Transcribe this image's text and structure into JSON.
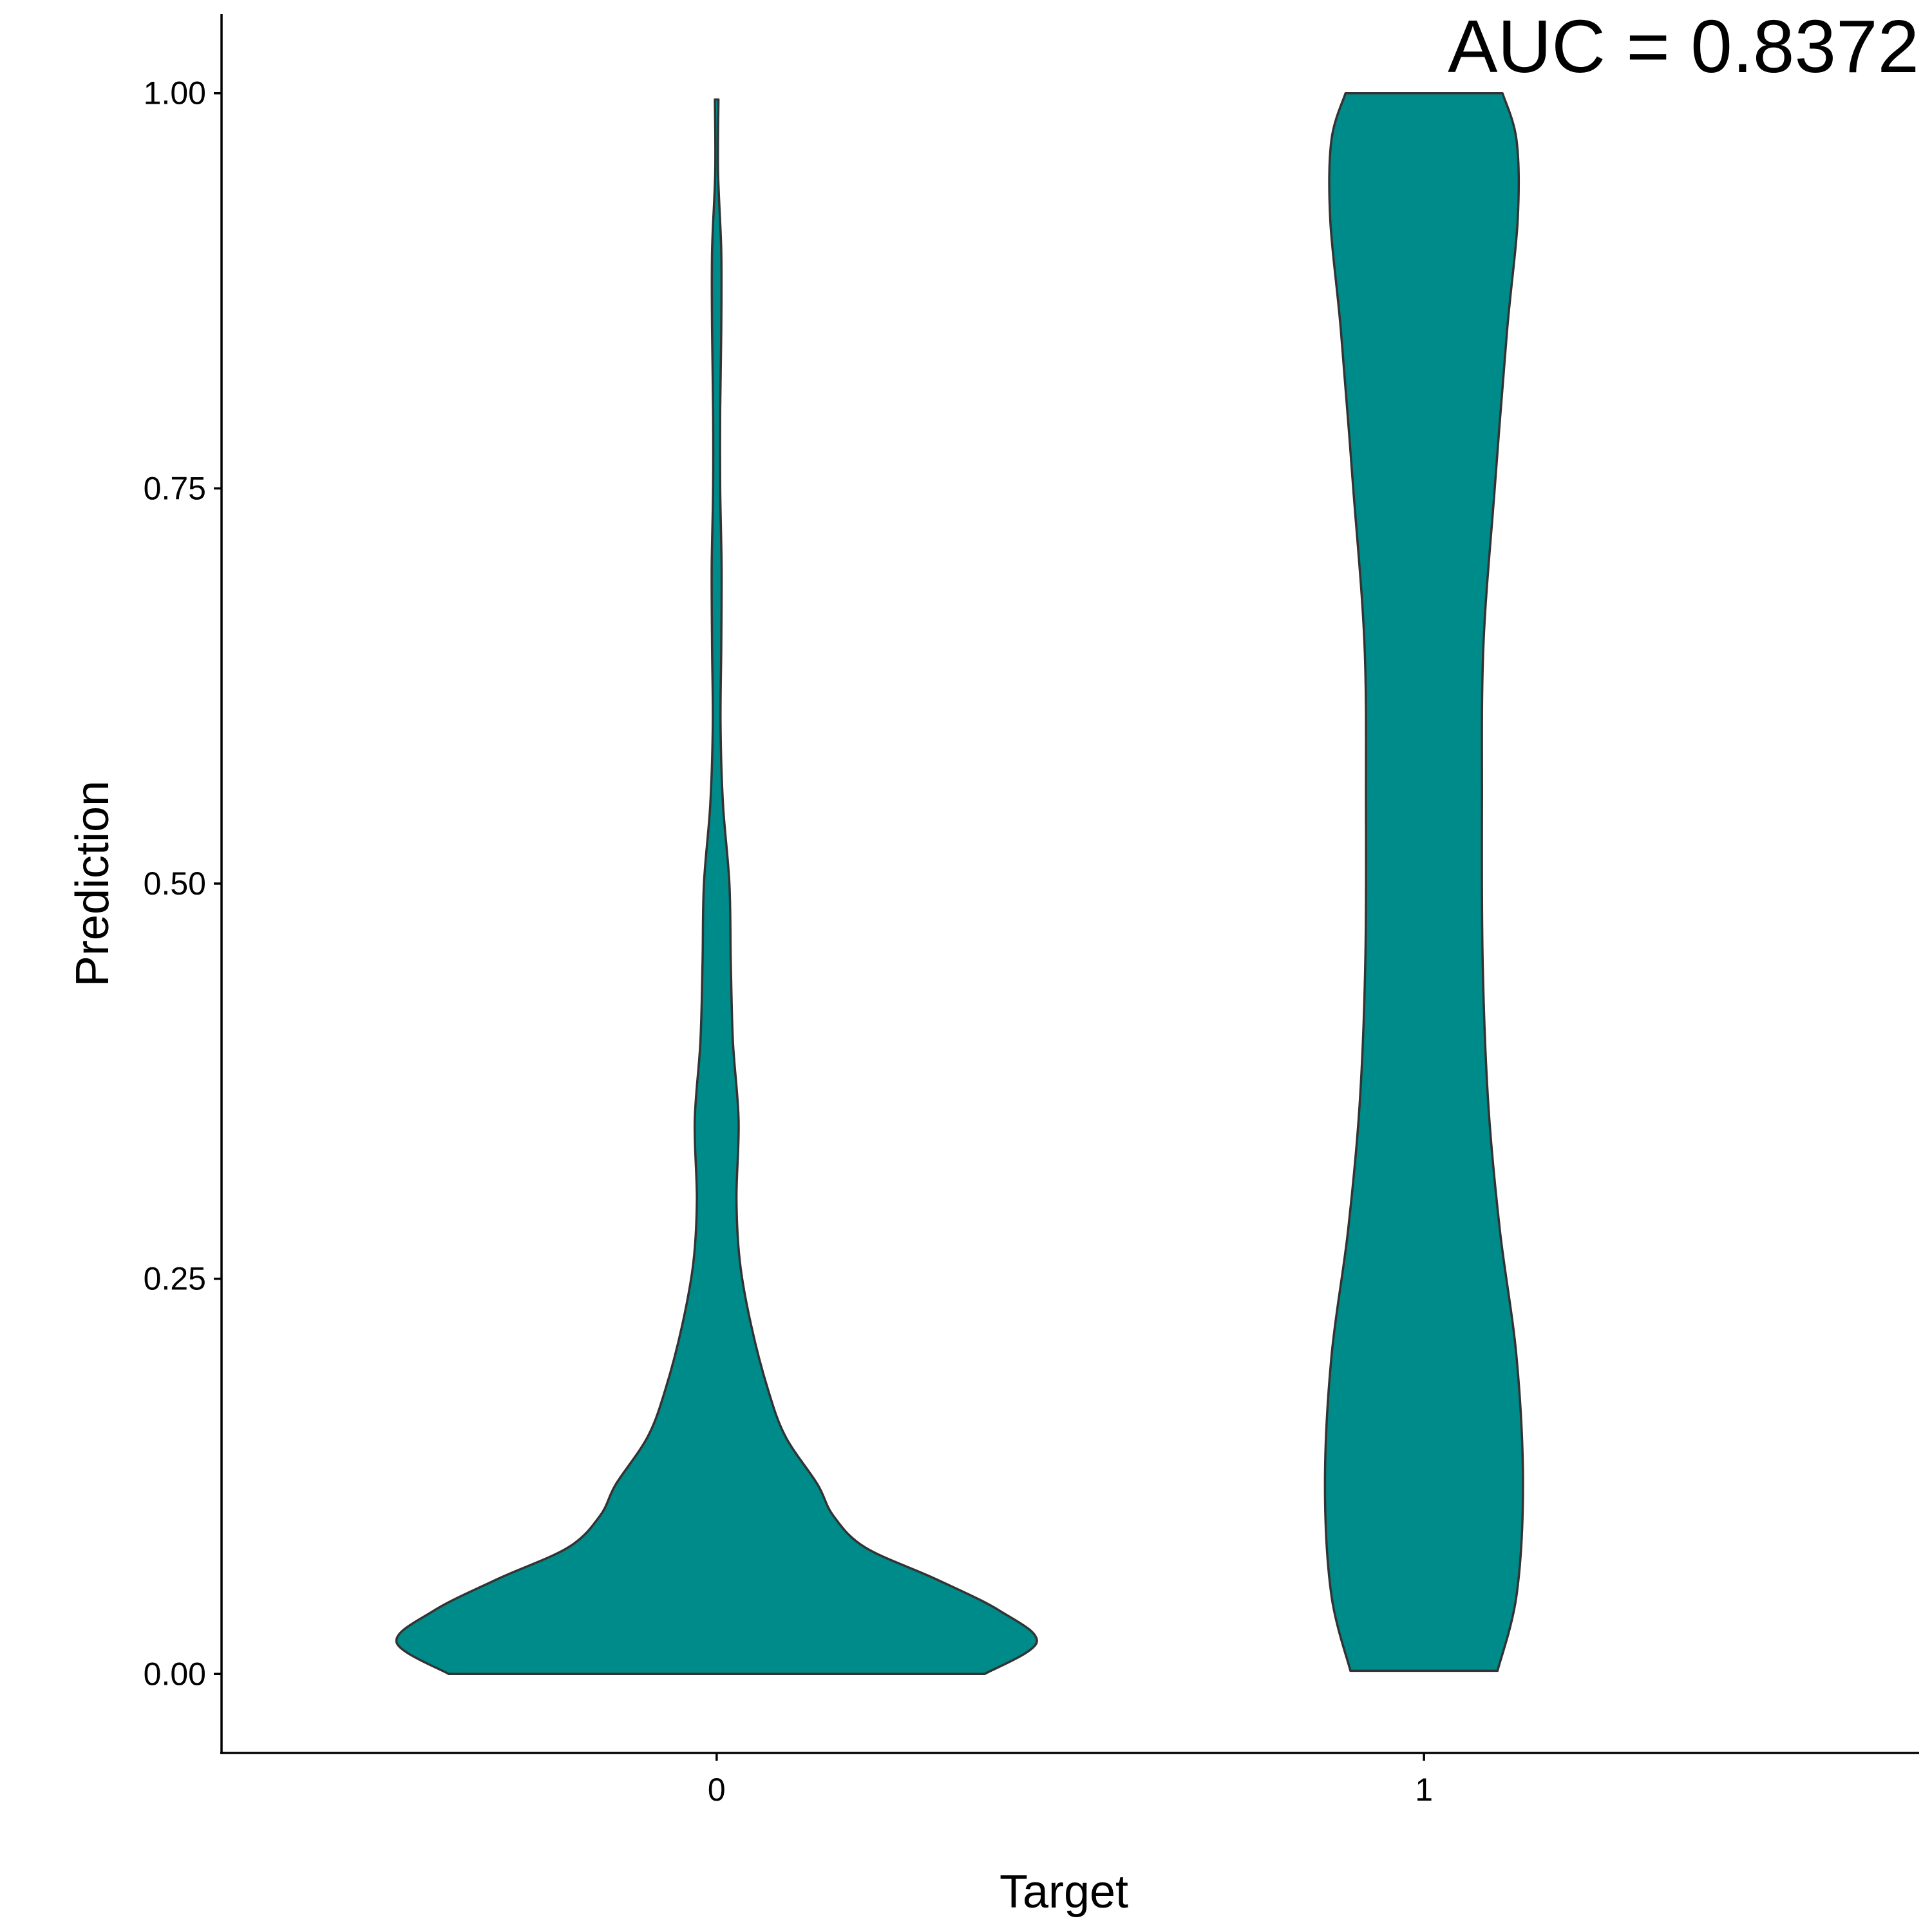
{
  "chart_data": {
    "type": "violin",
    "xlabel": "Target",
    "ylabel": "Prediction",
    "categories": [
      "0",
      "1"
    ],
    "ylim": [
      -0.05,
      1.05
    ],
    "yticks": [
      0.0,
      0.25,
      0.5,
      0.75,
      1.0
    ],
    "ytick_labels": [
      "0.00",
      "0.25",
      "0.50",
      "0.75",
      "1.00"
    ],
    "annotation": "AUC = 0.8372",
    "annotation_position": "top-right",
    "fill_color": "#008b8b",
    "outline_color": "#333333",
    "grid": false,
    "legend": "none",
    "series": [
      {
        "category": "0",
        "y_range": [
          0.0,
          0.996
        ],
        "density_profile": [
          [
            0.0,
            0.758
          ],
          [
            0.02,
            0.905
          ],
          [
            0.04,
            0.8
          ],
          [
            0.06,
            0.62
          ],
          [
            0.08,
            0.42
          ],
          [
            0.1,
            0.33
          ],
          [
            0.12,
            0.285
          ],
          [
            0.15,
            0.195
          ],
          [
            0.18,
            0.145
          ],
          [
            0.22,
            0.098
          ],
          [
            0.26,
            0.066
          ],
          [
            0.3,
            0.056
          ],
          [
            0.35,
            0.062
          ],
          [
            0.4,
            0.046
          ],
          [
            0.45,
            0.04
          ],
          [
            0.5,
            0.036
          ],
          [
            0.55,
            0.018
          ],
          [
            0.6,
            0.011
          ],
          [
            0.65,
            0.013
          ],
          [
            0.7,
            0.014
          ],
          [
            0.75,
            0.01
          ],
          [
            0.8,
            0.01
          ],
          [
            0.85,
            0.013
          ],
          [
            0.9,
            0.013
          ],
          [
            0.95,
            0.004
          ],
          [
            0.996,
            0.005
          ]
        ]
      },
      {
        "category": "1",
        "y_range": [
          0.002,
          1.0
        ],
        "density_profile": [
          [
            0.002,
            0.208
          ],
          [
            0.05,
            0.262
          ],
          [
            0.12,
            0.28
          ],
          [
            0.2,
            0.262
          ],
          [
            0.28,
            0.215
          ],
          [
            0.36,
            0.182
          ],
          [
            0.45,
            0.166
          ],
          [
            0.55,
            0.164
          ],
          [
            0.65,
            0.168
          ],
          [
            0.75,
            0.2
          ],
          [
            0.85,
            0.235
          ],
          [
            0.92,
            0.265
          ],
          [
            0.97,
            0.262
          ],
          [
            1.0,
            0.222
          ]
        ]
      }
    ]
  }
}
